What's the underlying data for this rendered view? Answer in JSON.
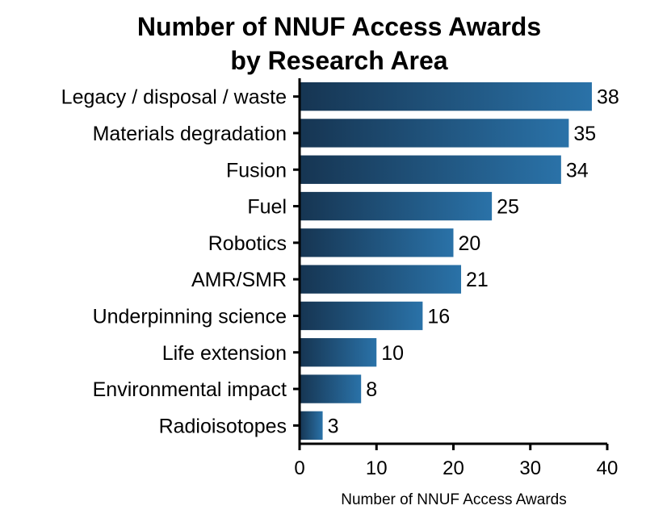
{
  "chart_data": {
    "type": "bar",
    "orientation": "horizontal",
    "title_lines": [
      "Number of NNUF Access Awards",
      "by Research Area"
    ],
    "xlabel": "Number of NNUF Access Awards",
    "ylabel": "",
    "xlim": [
      0,
      40
    ],
    "xticks": [
      0,
      10,
      20,
      30,
      40
    ],
    "grid": false,
    "legend": "none",
    "categories": [
      "Legacy / disposal / waste",
      "Materials degradation",
      "Fusion",
      "Fuel",
      "Robotics",
      "AMR/SMR",
      "Underpinning science",
      "Life extension",
      "Environmental impact",
      "Radioisotopes"
    ],
    "values": [
      38,
      35,
      34,
      25,
      20,
      21,
      16,
      10,
      8,
      3
    ],
    "colors": {
      "bar_start": "#163552",
      "bar_end": "#2a72a8",
      "axis": "#000000"
    }
  }
}
